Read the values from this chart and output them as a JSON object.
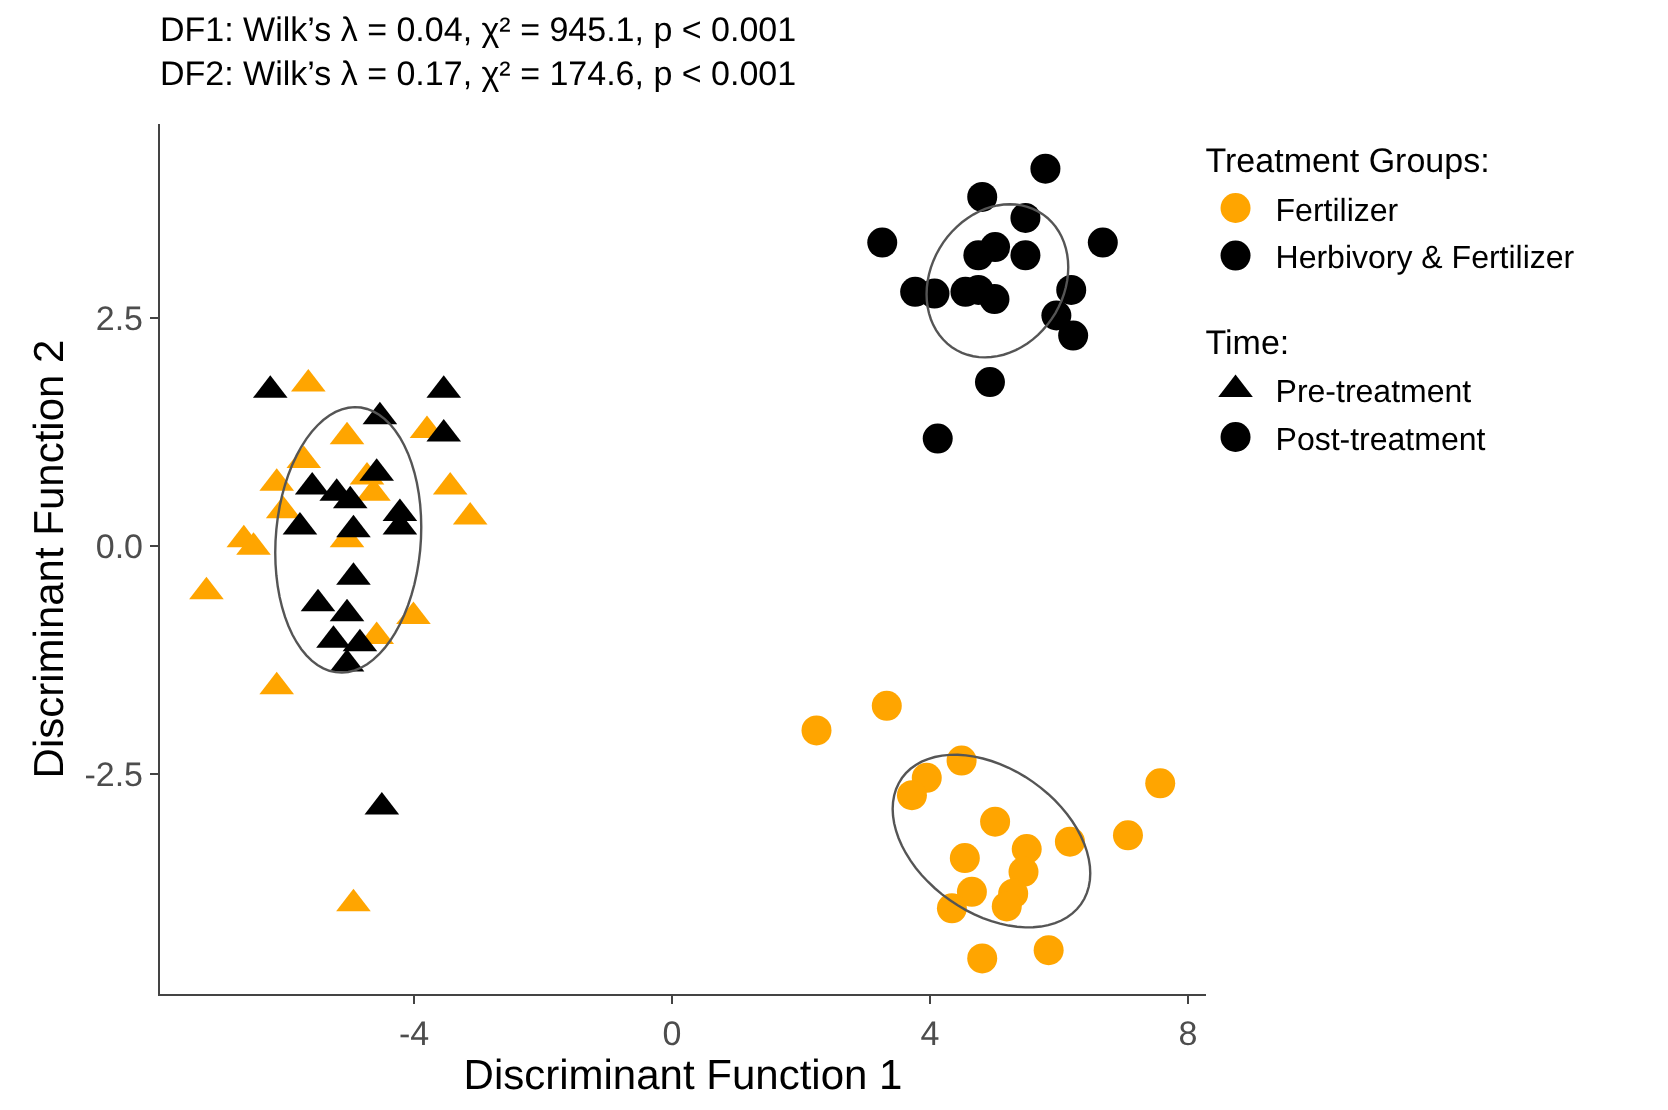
{
  "chart_data": {
    "type": "scatter",
    "title": "DF1: Wilk’s λ = 0.04, χ² = 945.1, p < 0.001",
    "subtitle": "DF2: Wilk’s λ = 0.17, χ² = 174.6, p < 0.001",
    "xlabel": "Discriminant Function 1",
    "ylabel": "Discriminant Function 2",
    "legend_title": "Treatment Groups:",
    "annotations": [
      "Time:"
    ],
    "xlim": [
      -7.94,
      8.28
    ],
    "ylim": [
      -4.91,
      4.63
    ],
    "xticks": [
      -4,
      0,
      4,
      8
    ],
    "yticks": [
      -2.5,
      {
        "value": 0,
        "label": "0.0"
      },
      2.5
    ],
    "legend": "top right",
    "series": [
      {
        "color": "#ffa500",
        "marker": "triangle",
        "x": [
          -7.22,
          -6.64,
          -6.49,
          -6.13,
          -5.64,
          -4.94,
          -5.04,
          -5.71,
          -6.13,
          -6.03,
          -4.73,
          -4.63,
          -5.04,
          -3.8,
          -3.44,
          -3.13,
          -4.01,
          -4.58
        ],
        "values": [
          -0.5,
          0.07,
          -0.01,
          -1.54,
          1.78,
          -3.92,
          1.2,
          0.94,
          0.69,
          0.39,
          0.76,
          0.58,
          0.07,
          1.27,
          0.65,
          0.32,
          -0.77,
          -0.99
        ]
      },
      {
        "color": "#000000",
        "marker": "triangle",
        "x": [
          -6.23,
          -3.54,
          -4.53,
          -3.54,
          -4.58,
          -5.58,
          -5.2,
          -4.99,
          -5.77,
          -4.94,
          -4.22,
          -4.22,
          -4.94,
          -5.49,
          -5.04,
          -5.25,
          -4.84,
          -5.04,
          -4.5
        ],
        "values": [
          1.71,
          1.71,
          1.42,
          1.23,
          0.8,
          0.65,
          0.58,
          0.5,
          0.21,
          0.18,
          0.36,
          0.21,
          -0.34,
          -0.63,
          -0.74,
          -1.03,
          -1.07,
          -1.29,
          -2.86
        ]
      },
      {
        "color": "#000000",
        "marker": "circle",
        "x": [
          5.79,
          4.81,
          5.48,
          3.26,
          6.68,
          4.75,
          5.01,
          5.48,
          3.77,
          4.07,
          4.55,
          4.75,
          5.0,
          6.19,
          5.96,
          6.22,
          4.93,
          4.12
        ],
        "values": [
          4.14,
          3.83,
          3.6,
          3.33,
          3.33,
          3.19,
          3.28,
          3.19,
          2.79,
          2.77,
          2.79,
          2.81,
          2.71,
          2.81,
          2.53,
          2.31,
          1.8,
          1.18
        ]
      },
      {
        "color": "#ffa500",
        "marker": "circle",
        "x": [
          2.24,
          3.33,
          4.49,
          3.95,
          3.72,
          7.57,
          5.01,
          7.07,
          6.17,
          5.5,
          4.54,
          5.45,
          4.65,
          5.29,
          5.19,
          4.34,
          4.81,
          5.84
        ],
        "values": [
          -2.02,
          -1.75,
          -2.35,
          -2.54,
          -2.73,
          -2.6,
          -3.02,
          -3.17,
          -3.24,
          -3.32,
          -3.42,
          -3.57,
          -3.79,
          -3.81,
          -3.95,
          -3.97,
          -4.52,
          -4.43
        ]
      },
      {
        "name": "Fertilizer",
        "color": "#ffa500",
        "marker": "circle"
      },
      {
        "name": "Herbivory & Fertilizer",
        "color": "#000000",
        "marker": "circle"
      },
      {
        "name": "Pre-treatment",
        "color": "#000000",
        "marker": "triangle"
      },
      {
        "name": "Post-treatment",
        "color": "#000000",
        "marker": "circle"
      }
    ]
  }
}
